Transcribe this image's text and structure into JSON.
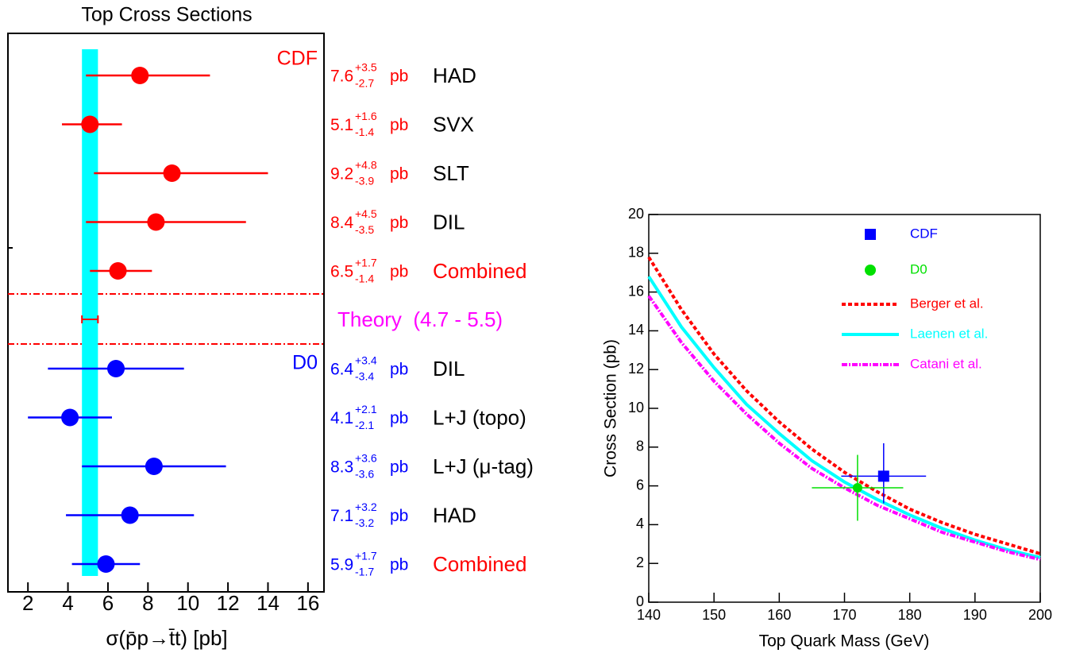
{
  "chart_data": [
    {
      "type": "forest",
      "title": "Top Cross Sections",
      "x_label": "σ(p̄p→t̄t)  [pb]",
      "unit": "pb",
      "band_color": "#00ffff",
      "groups": [
        {
          "name": "CDF",
          "color": "#ff0000",
          "rows": [
            {
              "label": "HAD",
              "label_color": "#000000",
              "value": 7.6,
              "err_plus": 3.5,
              "err_plus_label": "+3.5",
              "err_minus": -2.7
            },
            {
              "label": "SVX",
              "label_color": "#000000",
              "value": 5.1,
              "err_plus": 1.6,
              "err_plus_label": "+1.6",
              "err_minus": -1.4
            },
            {
              "label": "SLT",
              "label_color": "#000000",
              "value": 9.2,
              "err_plus": 4.8,
              "err_plus_label": "+4.8",
              "err_minus": -3.9
            },
            {
              "label": "DIL",
              "label_color": "#000000",
              "value": 8.4,
              "err_plus": 4.5,
              "err_plus_label": "+4.5",
              "err_minus": -3.5
            },
            {
              "label": "Combined",
              "label_color": "#ff0000",
              "value": 6.5,
              "err_plus": 1.7,
              "err_plus_label": "+1.7",
              "err_minus": -1.4
            }
          ]
        },
        {
          "name": "D0",
          "color": "#0000ff",
          "rows": [
            {
              "label": "DIL",
              "label_color": "#000000",
              "value": 6.4,
              "err_plus": 3.4,
              "err_plus_label": "+3.4",
              "err_minus": -3.4
            },
            {
              "label": "L+J (topo)",
              "label_color": "#000000",
              "value": 4.1,
              "err_plus": 2.1,
              "err_plus_label": "+2.1",
              "err_minus": -2.1
            },
            {
              "label": "L+J (μ-tag)",
              "label_color": "#000000",
              "value": 8.3,
              "err_plus": 3.6,
              "err_plus_label": "+3.6",
              "err_minus": -3.6
            },
            {
              "label": "HAD",
              "label_color": "#000000",
              "value": 7.1,
              "err_plus": 3.2,
              "err_plus_label": "+3.2",
              "err_minus": -3.2
            },
            {
              "label": "Combined",
              "label_color": "#ff0000",
              "value": 5.9,
              "err_plus": 1.7,
              "err_plus_label": "+1.7",
              "err_minus": -1.7
            }
          ]
        }
      ],
      "theory": {
        "label": "Theory  (4.7 - 5.5)",
        "low": 4.7,
        "high": 5.5,
        "color": "#ff00ff",
        "bar_color": "#ff0000"
      },
      "xlim": [
        1.0,
        16.8
      ],
      "xticks": [
        2,
        4,
        6,
        8,
        10,
        12,
        14,
        16
      ]
    },
    {
      "type": "line",
      "x_label": "Top Quark Mass (GeV)",
      "y_label": "Cross Section (pb)",
      "x": [
        140,
        145,
        150,
        155,
        160,
        165,
        170,
        175,
        180,
        185,
        190,
        195,
        200
      ],
      "series": [
        {
          "name": "Berger et al.",
          "color": "#ff0000",
          "style": "dotted",
          "values": [
            17.8,
            15.1,
            12.8,
            10.9,
            9.3,
            7.9,
            6.7,
            5.7,
            4.8,
            4.1,
            3.5,
            3.0,
            2.5
          ]
        },
        {
          "name": "Laenen et al.",
          "color": "#00ffff",
          "style": "solid",
          "values": [
            16.8,
            14.2,
            12.1,
            10.2,
            8.7,
            7.3,
            6.2,
            5.3,
            4.5,
            3.8,
            3.2,
            2.7,
            2.3
          ]
        },
        {
          "name": "Catani et al.",
          "color": "#ff00ff",
          "style": "dashdot",
          "values": [
            15.8,
            13.4,
            11.4,
            9.7,
            8.2,
            6.9,
            5.9,
            5.0,
            4.3,
            3.6,
            3.1,
            2.6,
            2.2
          ]
        }
      ],
      "points": [
        {
          "name": "CDF",
          "color": "#0000ff",
          "marker": "square",
          "x": 176,
          "y": 6.5,
          "xerr": 6.5,
          "yerr_plus": 1.7,
          "yerr_minus": 1.4
        },
        {
          "name": "D0",
          "color": "#00e000",
          "marker": "circle",
          "x": 172,
          "y": 5.9,
          "xerr": 7,
          "yerr_plus": 1.7,
          "yerr_minus": 1.7
        }
      ],
      "xlim": [
        140,
        200
      ],
      "ylim": [
        0,
        20
      ],
      "xticks": [
        140,
        150,
        160,
        170,
        180,
        190,
        200
      ],
      "yticks": [
        0,
        2,
        4,
        6,
        8,
        10,
        12,
        14,
        16,
        18,
        20
      ]
    }
  ]
}
